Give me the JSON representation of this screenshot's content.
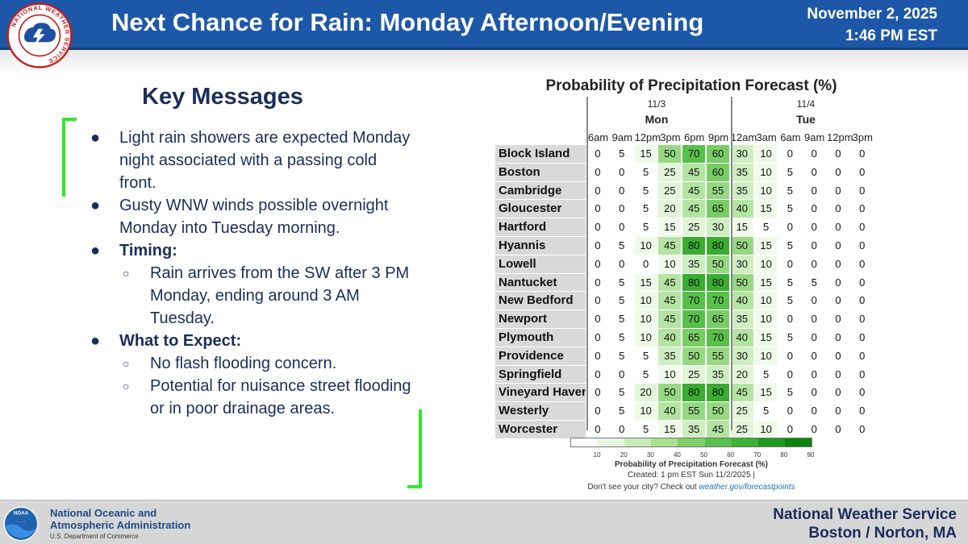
{
  "header": {
    "logo_text": "NATIONAL WEATHER SERVICE",
    "title": "Next Chance for Rain: Monday Afternoon/Evening",
    "date": "November 2, 2025",
    "time": "1:46 PM EST"
  },
  "key_messages": {
    "title": "Key Messages",
    "items": [
      {
        "level": 1,
        "bold": false,
        "text": "Light rain showers are expected Monday night associated with a passing cold front."
      },
      {
        "level": 1,
        "bold": false,
        "text": "Gusty WNW winds possible overnight Monday into Tuesday morning."
      },
      {
        "level": 1,
        "bold": true,
        "text": "Timing:"
      },
      {
        "level": 2,
        "bold": false,
        "text": "Rain arrives from the SW after 3 PM Monday, ending around 3 AM Tuesday."
      },
      {
        "level": 1,
        "bold": true,
        "text": "What to Expect:"
      },
      {
        "level": 2,
        "bold": false,
        "text": "No flash flooding concern."
      },
      {
        "level": 2,
        "bold": false,
        "text": "Potential for nuisance street flooding or in poor drainage areas."
      }
    ]
  },
  "chart_data": {
    "type": "table",
    "title": "Probability of Precipitation Forecast (%)",
    "days": [
      {
        "date": "11/3",
        "name": "Mon"
      },
      {
        "date": "11/4",
        "name": "Tue"
      }
    ],
    "hours": [
      "6am",
      "9am",
      "12pm",
      "3pm",
      "6pm",
      "9pm",
      "12am",
      "3am",
      "6am",
      "9am",
      "12pm",
      "3pm"
    ],
    "rows": [
      {
        "city": "Block Island",
        "values": [
          0,
          5,
          15,
          50,
          70,
          60,
          30,
          10,
          0,
          0,
          0,
          0
        ]
      },
      {
        "city": "Boston",
        "values": [
          0,
          0,
          5,
          25,
          45,
          60,
          35,
          10,
          5,
          0,
          0,
          0
        ]
      },
      {
        "city": "Cambridge",
        "values": [
          0,
          0,
          5,
          25,
          45,
          55,
          35,
          10,
          5,
          0,
          0,
          0
        ]
      },
      {
        "city": "Gloucester",
        "values": [
          0,
          0,
          5,
          20,
          45,
          65,
          40,
          15,
          5,
          0,
          0,
          0
        ]
      },
      {
        "city": "Hartford",
        "values": [
          0,
          0,
          5,
          15,
          25,
          30,
          15,
          5,
          0,
          0,
          0,
          0
        ]
      },
      {
        "city": "Hyannis",
        "values": [
          0,
          5,
          10,
          45,
          80,
          80,
          50,
          15,
          5,
          0,
          0,
          0
        ]
      },
      {
        "city": "Lowell",
        "values": [
          0,
          0,
          0,
          10,
          35,
          50,
          30,
          10,
          0,
          0,
          0,
          0
        ]
      },
      {
        "city": "Nantucket",
        "values": [
          0,
          5,
          15,
          45,
          80,
          80,
          50,
          15,
          5,
          5,
          0,
          0
        ]
      },
      {
        "city": "New Bedford",
        "values": [
          0,
          5,
          10,
          45,
          70,
          70,
          40,
          10,
          5,
          0,
          0,
          0
        ]
      },
      {
        "city": "Newport",
        "values": [
          0,
          5,
          10,
          45,
          70,
          65,
          35,
          10,
          0,
          0,
          0,
          0
        ]
      },
      {
        "city": "Plymouth",
        "values": [
          0,
          5,
          10,
          40,
          65,
          70,
          40,
          15,
          5,
          0,
          0,
          0
        ]
      },
      {
        "city": "Providence",
        "values": [
          0,
          5,
          5,
          35,
          50,
          55,
          30,
          10,
          0,
          0,
          0,
          0
        ]
      },
      {
        "city": "Springfield",
        "values": [
          0,
          0,
          5,
          10,
          25,
          35,
          20,
          5,
          0,
          0,
          0,
          0
        ]
      },
      {
        "city": "Vineyard Haven",
        "values": [
          0,
          5,
          20,
          50,
          80,
          80,
          45,
          15,
          5,
          0,
          0,
          0
        ]
      },
      {
        "city": "Westerly",
        "values": [
          0,
          5,
          10,
          40,
          55,
          50,
          25,
          5,
          0,
          0,
          0,
          0
        ]
      },
      {
        "city": "Worcester",
        "values": [
          0,
          0,
          5,
          15,
          35,
          45,
          25,
          10,
          0,
          0,
          0,
          0
        ]
      }
    ],
    "legend": {
      "title": "Probability of Precipitation Forecast (%)",
      "ticks": [
        "10",
        "20",
        "30",
        "40",
        "50",
        "60",
        "70",
        "80",
        "90"
      ],
      "colors": [
        "#ffffff",
        "#e8f7e0",
        "#c8ecb8",
        "#a8e08e",
        "#7fcf6c",
        "#58c04e",
        "#3db035",
        "#1f9a1f",
        "#0e820e"
      ]
    },
    "created": "Created: 1 pm EST Sun 11/2/2025  |",
    "note_prefix": "Don't see your city? Check out",
    "note_link": "weather.gov/forecastpoints"
  },
  "footer": {
    "noaa_name_line1": "National Oceanic and",
    "noaa_name_line2": "Atmospheric Administration",
    "noaa_dept": "U.S. Department of Commerce",
    "noaa_logo_text": "NOAA",
    "nws_line1": "National Weather Service",
    "nws_line2": "Boston / Norton, MA"
  },
  "colors": {
    "header_blue": "#1d58a8",
    "text_navy": "#1b2d5c",
    "bracket_green": "#2ee82e"
  }
}
